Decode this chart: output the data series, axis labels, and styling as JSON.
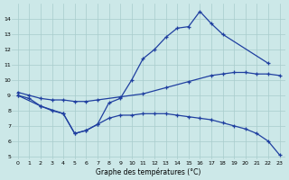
{
  "line_color": "#1f3fa0",
  "bg_color": "#cce8e8",
  "grid_color": "#a8cccc",
  "xlabel": "Graphe des températures (°C)",
  "xlim": [
    -0.5,
    23.5
  ],
  "ylim": [
    4.8,
    15.0
  ],
  "yticks": [
    5,
    6,
    7,
    8,
    9,
    10,
    11,
    12,
    13,
    14
  ],
  "xticks": [
    0,
    1,
    2,
    3,
    4,
    5,
    6,
    7,
    8,
    9,
    10,
    11,
    12,
    13,
    14,
    15,
    16,
    17,
    18,
    19,
    20,
    21,
    22,
    23
  ],
  "x_top": [
    0,
    1,
    2,
    3,
    4,
    5,
    6,
    7,
    8,
    9,
    10,
    11,
    12,
    13,
    14,
    15,
    16,
    17,
    18,
    22
  ],
  "y_top": [
    9.0,
    8.8,
    8.3,
    8.0,
    7.8,
    6.5,
    6.7,
    7.1,
    8.5,
    8.8,
    10.0,
    11.4,
    12.0,
    12.8,
    13.4,
    13.5,
    14.5,
    13.7,
    13.0,
    11.1
  ],
  "x_mid": [
    0,
    1,
    2,
    3,
    4,
    5,
    6,
    7,
    9,
    11,
    13,
    15,
    17,
    18,
    19,
    20,
    21,
    22,
    23
  ],
  "y_mid": [
    9.2,
    9.0,
    8.8,
    8.7,
    8.7,
    8.6,
    8.6,
    8.7,
    8.9,
    9.1,
    9.5,
    9.9,
    10.3,
    10.4,
    10.5,
    10.5,
    10.4,
    10.4,
    10.3
  ],
  "x_bot": [
    0,
    2,
    4,
    5,
    6,
    7,
    8,
    9,
    10,
    11,
    12,
    13,
    14,
    15,
    16,
    17,
    18,
    19,
    20,
    21,
    22,
    23
  ],
  "y_bot": [
    9.0,
    8.3,
    7.8,
    6.5,
    6.7,
    7.1,
    7.5,
    7.7,
    7.7,
    7.8,
    7.8,
    7.8,
    7.7,
    7.6,
    7.5,
    7.4,
    7.2,
    7.0,
    6.8,
    6.5,
    6.0,
    5.1
  ]
}
